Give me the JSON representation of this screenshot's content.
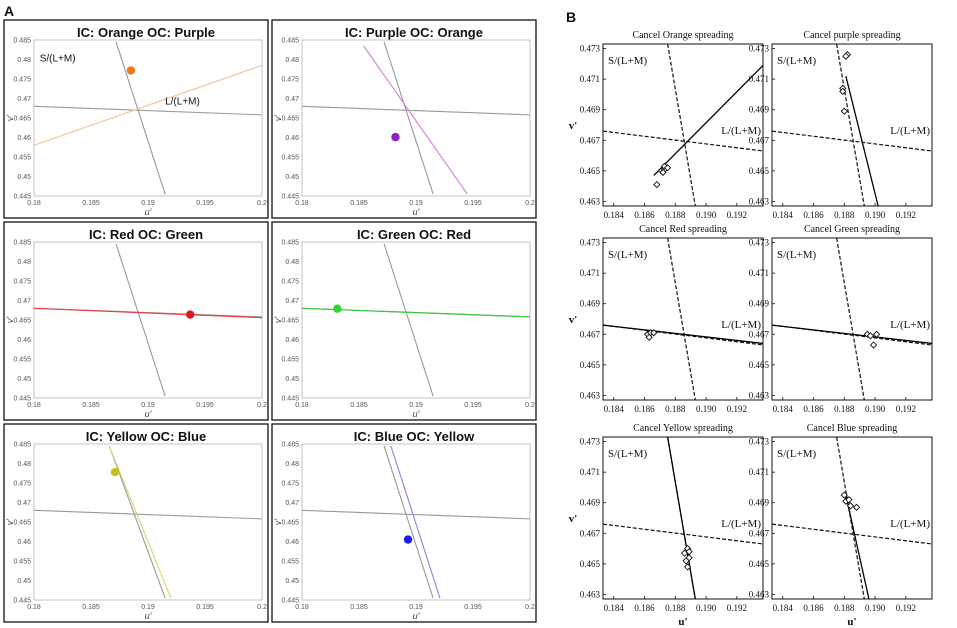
{
  "figure": {
    "panel_a_letter": "A",
    "panel_b_letter": "B"
  },
  "chart_data": [
    {
      "panel": "A",
      "type": "line",
      "xlabel": "u'",
      "ylabel": "v'",
      "xlim": [
        0.18,
        0.2
      ],
      "ylim": [
        0.445,
        0.485
      ],
      "xticks": [
        "0.18",
        "0.185",
        "0.19",
        "0.195",
        "0.2"
      ],
      "yticks": [
        "0.445",
        "0.45",
        "0.455",
        "0.46",
        "0.465",
        "0.47",
        "0.475",
        "0.48",
        "0.485"
      ],
      "subplots": [
        {
          "title": "IC: Orange OC: Purple",
          "labels": [
            {
              "text": "S/(L+M)",
              "u": 0.1805,
              "v": 0.4795
            },
            {
              "text": "L/(L+M)",
              "u": 0.1915,
              "v": 0.4685
            }
          ],
          "lines": [
            {
              "name": "L/(L+M)",
              "color": "#999999",
              "points": [
                [
                  0.18,
                  0.468
                ],
                [
                  0.2,
                  0.4658
                ]
              ]
            },
            {
              "name": "S/(L+M)",
              "color": "#999999",
              "points": [
                [
                  0.1872,
                  0.4845
                ],
                [
                  0.1915,
                  0.4455
                ]
              ]
            },
            {
              "name": "stimulus",
              "color": "#f7c79a",
              "points": [
                [
                  0.18,
                  0.458
                ],
                [
                  0.2,
                  0.4785
                ]
              ]
            }
          ],
          "points": [
            {
              "u": 0.1885,
              "v": 0.4772,
              "color": "#f07a1a"
            }
          ]
        },
        {
          "title": "IC: Purple OC: Orange",
          "labels": [],
          "lines": [
            {
              "name": "L/(L+M)",
              "color": "#999999",
              "points": [
                [
                  0.18,
                  0.468
                ],
                [
                  0.2,
                  0.4658
                ]
              ]
            },
            {
              "name": "S/(L+M)",
              "color": "#999999",
              "points": [
                [
                  0.1872,
                  0.4845
                ],
                [
                  0.1915,
                  0.4455
                ]
              ]
            },
            {
              "name": "stimulus",
              "color": "#d58ad8",
              "points": [
                [
                  0.1854,
                  0.4835
                ],
                [
                  0.1945,
                  0.4455
                ]
              ]
            }
          ],
          "points": [
            {
              "u": 0.1882,
              "v": 0.4601,
              "color": "#8a22c8"
            }
          ]
        },
        {
          "title": "IC: Red OC: Green",
          "labels": [],
          "lines": [
            {
              "name": "L/(L+M)",
              "color": "#999999",
              "points": [
                [
                  0.18,
                  0.468
                ],
                [
                  0.2,
                  0.4658
                ]
              ]
            },
            {
              "name": "S/(L+M)",
              "color": "#999999",
              "points": [
                [
                  0.1872,
                  0.4845
                ],
                [
                  0.1915,
                  0.4455
                ]
              ]
            },
            {
              "name": "stimulus",
              "color": "#e84040",
              "points": [
                [
                  0.18,
                  0.468
                ],
                [
                  0.2,
                  0.4656
                ]
              ]
            }
          ],
          "points": [
            {
              "u": 0.1937,
              "v": 0.4664,
              "color": "#e8141e"
            }
          ]
        },
        {
          "title": "IC: Green OC: Red",
          "labels": [],
          "lines": [
            {
              "name": "L/(L+M)",
              "color": "#999999",
              "points": [
                [
                  0.18,
                  0.468
                ],
                [
                  0.2,
                  0.4658
                ]
              ]
            },
            {
              "name": "S/(L+M)",
              "color": "#999999",
              "points": [
                [
                  0.1872,
                  0.4845
                ],
                [
                  0.1915,
                  0.4455
                ]
              ]
            },
            {
              "name": "stimulus",
              "color": "#3ec63e",
              "points": [
                [
                  0.18,
                  0.468
                ],
                [
                  0.2,
                  0.4658
                ]
              ]
            }
          ],
          "points": [
            {
              "u": 0.1831,
              "v": 0.4679,
              "color": "#2fd82f"
            }
          ]
        },
        {
          "title": "IC: Yellow OC: Blue",
          "labels": [],
          "lines": [
            {
              "name": "L/(L+M)",
              "color": "#999999",
              "points": [
                [
                  0.18,
                  0.468
                ],
                [
                  0.2,
                  0.4658
                ]
              ]
            },
            {
              "name": "S/(L+M)",
              "color": "#999999",
              "points": [
                [
                  0.1866,
                  0.4845
                ],
                [
                  0.1915,
                  0.4455
                ]
              ]
            },
            {
              "name": "stimulus",
              "color": "#d6d87a",
              "points": [
                [
                  0.1866,
                  0.4845
                ],
                [
                  0.192,
                  0.4455
                ]
              ]
            }
          ],
          "points": [
            {
              "u": 0.1871,
              "v": 0.4778,
              "color": "#c2c218"
            }
          ]
        },
        {
          "title": "IC: Blue OC: Yellow",
          "labels": [],
          "lines": [
            {
              "name": "L/(L+M)",
              "color": "#999999",
              "points": [
                [
                  0.18,
                  0.468
                ],
                [
                  0.2,
                  0.4658
                ]
              ]
            },
            {
              "name": "S/(L+M)",
              "color": "#999999",
              "points": [
                [
                  0.1872,
                  0.4845
                ],
                [
                  0.1915,
                  0.4455
                ]
              ]
            },
            {
              "name": "stimulus",
              "color": "#8f8fe0",
              "points": [
                [
                  0.1878,
                  0.4845
                ],
                [
                  0.1921,
                  0.4455
                ]
              ]
            }
          ],
          "points": [
            {
              "u": 0.1893,
              "v": 0.4605,
              "color": "#1a1af0"
            }
          ]
        }
      ]
    },
    {
      "panel": "B",
      "type": "scatter",
      "xlabel": "u'",
      "ylabel": "v'",
      "xlim": [
        0.1833,
        0.1937
      ],
      "ylim": [
        0.4627,
        0.4733
      ],
      "xticks": [
        "0.184",
        "0.186",
        "0.188",
        "0.190",
        "0.192"
      ],
      "yticks": [
        "0.463",
        "0.465",
        "0.467",
        "0.469",
        "0.471",
        "0.473"
      ],
      "subplots": [
        {
          "title": "Cancel Orange spreading",
          "fit_line": [
            [
              0.1866,
              0.4647
            ],
            [
              0.1937,
              0.4719
            ]
          ],
          "points": [
            [
              0.1868,
              0.4641
            ],
            [
              0.1871,
              0.465
            ],
            [
              0.1873,
              0.4651
            ],
            [
              0.1873,
              0.4653
            ],
            [
              0.1875,
              0.4652
            ],
            [
              0.1872,
              0.4649
            ]
          ]
        },
        {
          "title": "Cancel purple spreading",
          "fit_line": [
            [
              0.1881,
              0.4712
            ],
            [
              0.1902,
              0.4627
            ]
          ],
          "points": [
            [
              0.1882,
              0.4726
            ],
            [
              0.1881,
              0.4725
            ],
            [
              0.1879,
              0.4704
            ],
            [
              0.1879,
              0.4702
            ],
            [
              0.188,
              0.4689
            ]
          ]
        },
        {
          "title": "Cancel Red spreading",
          "fit_line": [
            [
              0.1833,
              0.4676
            ],
            [
              0.1937,
              0.4664
            ]
          ],
          "points": [
            [
              0.1862,
              0.467
            ],
            [
              0.1864,
              0.4671
            ],
            [
              0.1866,
              0.4671
            ],
            [
              0.1863,
              0.4668
            ]
          ]
        },
        {
          "title": "Cancel Green spreading",
          "fit_line": [
            [
              0.1833,
              0.4676
            ],
            [
              0.1937,
              0.4664
            ]
          ],
          "points": [
            [
              0.1895,
              0.467
            ],
            [
              0.1897,
              0.4669
            ],
            [
              0.1901,
              0.467
            ],
            [
              0.1899,
              0.4663
            ]
          ]
        },
        {
          "title": "Cancel Yellow spreading",
          "fit_line": [
            [
              0.1875,
              0.4733
            ],
            [
              0.1893,
              0.4627
            ]
          ],
          "points": [
            [
              0.1886,
              0.4657
            ],
            [
              0.1888,
              0.466
            ],
            [
              0.1889,
              0.4654
            ],
            [
              0.1888,
              0.4648
            ],
            [
              0.1887,
              0.4652
            ],
            [
              0.1889,
              0.4658
            ]
          ]
        },
        {
          "title": "Cancel Blue spreading",
          "fit_line": [
            [
              0.1881,
              0.4695
            ],
            [
              0.1896,
              0.4627
            ]
          ],
          "points": [
            [
              0.188,
              0.4695
            ],
            [
              0.1881,
              0.4691
            ],
            [
              0.1883,
              0.4692
            ],
            [
              0.1888,
              0.4687
            ],
            [
              0.1884,
              0.4688
            ]
          ]
        }
      ],
      "reference_lines": [
        {
          "name": "S/(L+M)",
          "points": [
            [
              0.1875,
              0.4733
            ],
            [
              0.1893,
              0.4627
            ]
          ]
        },
        {
          "name": "L/(L+M)",
          "points": [
            [
              0.1833,
              0.4676
            ],
            [
              0.1937,
              0.4663
            ]
          ]
        }
      ],
      "labels": {
        "s_axis": "S/(L+M)",
        "l_axis": "L/(L+M)"
      }
    }
  ]
}
